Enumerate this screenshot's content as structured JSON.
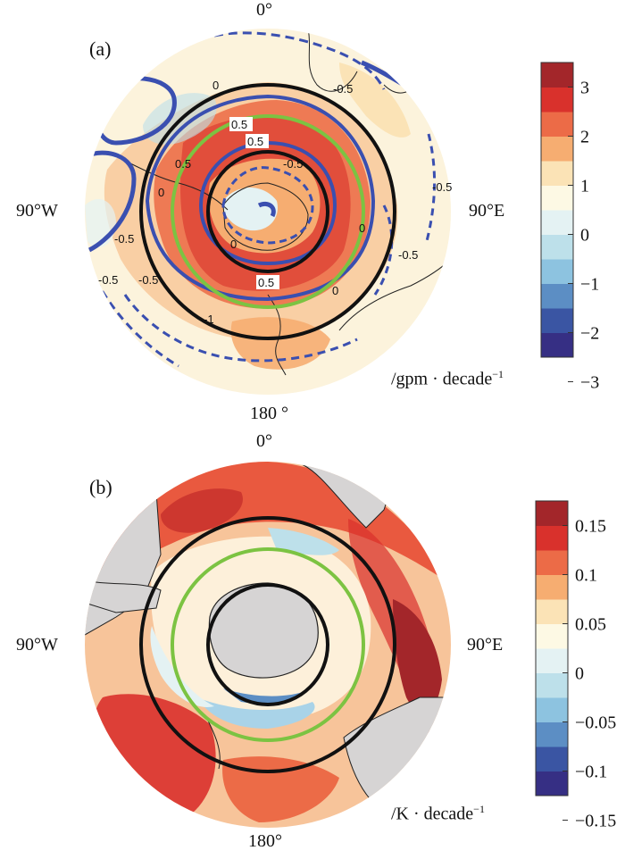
{
  "panels": [
    {
      "label": "(a)",
      "lon_labels": {
        "top": "0°",
        "left": "90°W",
        "right": "90°E",
        "bottom": "180 °"
      },
      "colorbar": {
        "ticks": [
          "3",
          "2",
          "1",
          "0",
          "−1",
          "−2",
          "−3"
        ],
        "colors": [
          "#a3262a",
          "#d9312c",
          "#ec6b47",
          "#f6ad71",
          "#fbe3b6",
          "#fdf9e4",
          "#e4f2f3",
          "#bde0ea",
          "#8dc3e0",
          "#5c8ec4",
          "#3a55a3",
          "#362f84"
        ],
        "unit": "/gpm · decade",
        "unit_exp": "−1"
      },
      "contour_labels": [
        "-0.5",
        "0",
        "0.5",
        "0.5",
        "-0.5",
        "0",
        "0.5",
        "-0.5",
        "-0.5",
        "0",
        "-0.5",
        "-1",
        "0.5",
        "0",
        "-0.5",
        "-0.5",
        "0"
      ]
    },
    {
      "label": "(b)",
      "lon_labels": {
        "top": "0°",
        "left": "90°W",
        "right": "90°E",
        "bottom": "180°"
      },
      "colorbar": {
        "ticks": [
          "0.15",
          "0.1",
          "0.05",
          "0",
          "−0.05",
          "−0.1",
          "−0.15"
        ],
        "colors": [
          "#a3262a",
          "#d9312c",
          "#ec6b47",
          "#f6ad71",
          "#fbe3b6",
          "#fdf9e4",
          "#e4f2f3",
          "#bde0ea",
          "#8dc3e0",
          "#5c8ec4",
          "#3a55a3",
          "#362f84"
        ],
        "unit": "/K · decade",
        "unit_exp": "−1"
      }
    }
  ],
  "colors": {
    "ring_black": "#111111",
    "ring_green": "#7cc342",
    "contour_blue": "#3a4fb0",
    "land": "#d6d4d4"
  }
}
